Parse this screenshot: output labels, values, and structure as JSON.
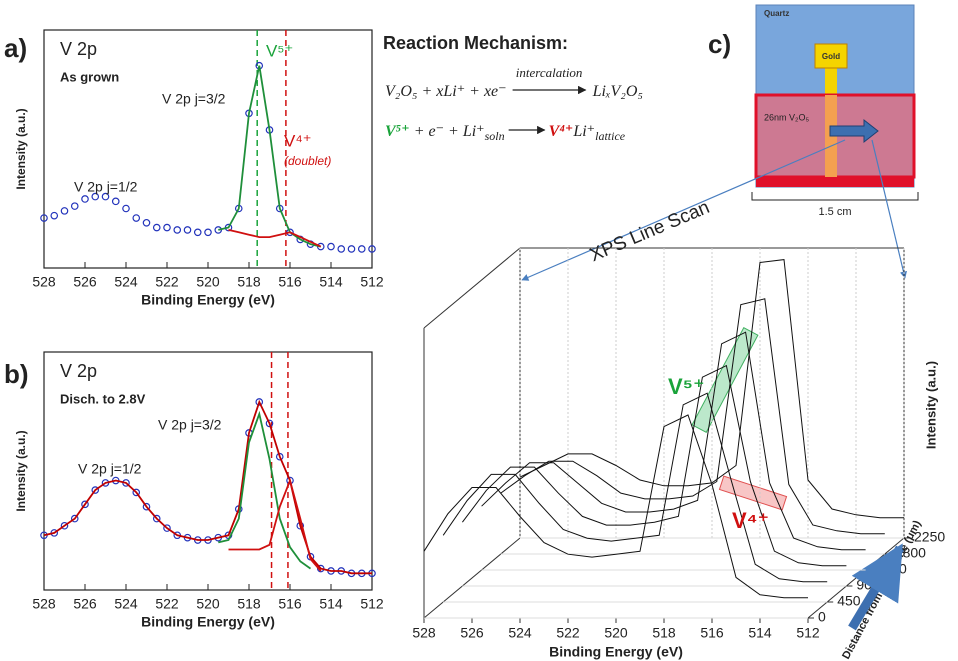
{
  "chart_data": [
    {
      "type": "line",
      "panel_label": "a)",
      "annotations": [
        {
          "text": "V 2p"
        },
        {
          "text": "As grown"
        },
        {
          "text": "V 2p j=3/2"
        },
        {
          "text": "V 2p j=1/2"
        },
        {
          "text": "V⁵⁺",
          "color": "#1aa33a"
        },
        {
          "text": "V⁴⁺",
          "color": "#d01010"
        },
        {
          "text": "(doublet)",
          "color": "#d01010"
        }
      ],
      "xlabel": "Binding Energy (eV)",
      "ylabel": "Intensity (a.u.)",
      "x": [
        528,
        527.5,
        527,
        526.5,
        526,
        525.5,
        525,
        524.5,
        524,
        523.5,
        523,
        522.5,
        522,
        521.5,
        521,
        520.5,
        520,
        519.5,
        519,
        518.5,
        518,
        517.5,
        517,
        516.5,
        516,
        515.5,
        515,
        514.5,
        514,
        513.5,
        513,
        512.5,
        512
      ],
      "xlim": [
        528,
        512
      ],
      "xticks": [
        528,
        526,
        524,
        522,
        520,
        518,
        516,
        514,
        512
      ],
      "ylim": [
        0,
        100
      ],
      "vlines": [
        {
          "x": 517.6,
          "color": "#1aa33a"
        },
        {
          "x": 516.2,
          "color": "#d01010"
        }
      ],
      "series": [
        {
          "color": "#2233bb",
          "marker": "circle",
          "values": [
            21,
            22,
            24,
            26,
            29,
            30,
            30,
            28,
            25,
            21,
            19,
            17,
            17,
            16,
            16,
            15,
            15,
            16,
            17,
            25,
            65,
            85,
            58,
            25,
            15,
            12,
            10,
            9,
            9,
            8,
            8,
            8,
            8
          ]
        },
        {
          "color": "#1f8f3a",
          "values": [
            null,
            null,
            null,
            null,
            null,
            null,
            null,
            null,
            null,
            null,
            null,
            null,
            null,
            null,
            null,
            null,
            null,
            16,
            17,
            25,
            65,
            85,
            58,
            25,
            15,
            12,
            10,
            9,
            null,
            null,
            null,
            null,
            null
          ]
        },
        {
          "color": "#d01010",
          "values": [
            null,
            null,
            null,
            null,
            null,
            null,
            null,
            null,
            null,
            null,
            null,
            null,
            null,
            null,
            null,
            null,
            null,
            null,
            16,
            15,
            14,
            13,
            13,
            14,
            15,
            13,
            11,
            9,
            null,
            null,
            null,
            null,
            null
          ]
        }
      ]
    },
    {
      "type": "line",
      "panel_label": "b)",
      "annotations": [
        {
          "text": "V 2p"
        },
        {
          "text": "Disch. to 2.8V"
        },
        {
          "text": "V 2p j=3/2"
        },
        {
          "text": "V 2p j=1/2"
        }
      ],
      "xlabel": "Binding Energy (eV)",
      "ylabel": "Intensity (a.u.)",
      "x": [
        528,
        527.5,
        527,
        526.5,
        526,
        525.5,
        525,
        524.5,
        524,
        523.5,
        523,
        522.5,
        522,
        521.5,
        521,
        520.5,
        520,
        519.5,
        519,
        518.5,
        518,
        517.5,
        517,
        516.5,
        516,
        515.5,
        515,
        514.5,
        514,
        513.5,
        513,
        512.5,
        512
      ],
      "xlim": [
        528,
        512
      ],
      "xticks": [
        528,
        526,
        524,
        522,
        520,
        518,
        516,
        514,
        512
      ],
      "ylim": [
        0,
        100
      ],
      "vlines": [
        {
          "x": 516.9,
          "color": "#d01010"
        },
        {
          "x": 516.1,
          "color": "#d01010"
        }
      ],
      "series": [
        {
          "color": "#2233bb",
          "marker": "circle",
          "values": [
            23,
            24,
            27,
            30,
            36,
            42,
            45,
            46,
            45,
            41,
            35,
            30,
            26,
            23,
            22,
            21,
            21,
            22,
            23,
            34,
            66,
            79,
            70,
            56,
            46,
            27,
            14,
            9,
            8,
            8,
            7,
            7,
            7
          ]
        },
        {
          "color": "#c00000",
          "values": [
            23,
            24,
            27,
            30,
            36,
            42,
            45,
            46,
            45,
            41,
            35,
            30,
            26,
            23,
            22,
            21,
            21,
            22,
            23,
            34,
            66,
            79,
            70,
            56,
            46,
            27,
            14,
            9,
            8,
            8,
            7,
            7,
            7
          ]
        },
        {
          "color": "#1f8f3a",
          "values": [
            null,
            null,
            null,
            null,
            null,
            null,
            null,
            null,
            null,
            null,
            null,
            null,
            null,
            null,
            null,
            null,
            null,
            20,
            21,
            30,
            62,
            74,
            55,
            30,
            18,
            12,
            9,
            null,
            null,
            null,
            null,
            null,
            null
          ]
        },
        {
          "color": "#d01010",
          "values": [
            null,
            null,
            null,
            null,
            null,
            null,
            null,
            null,
            null,
            null,
            null,
            null,
            null,
            null,
            null,
            null,
            null,
            null,
            17,
            17,
            17,
            17,
            19,
            35,
            46,
            30,
            13,
            8,
            null,
            null,
            null,
            null,
            null
          ]
        }
      ]
    },
    {
      "type": "waterfall",
      "annotations": [
        {
          "text": "V⁵⁺",
          "color": "#1aa33a"
        },
        {
          "text": "V⁴⁺",
          "color": "#d01010"
        }
      ],
      "xlabel": "Binding Energy (eV)",
      "ylabel": "Intensity (a.u.)",
      "zlabel": "Distance from centerline (μm)",
      "x": [
        528,
        527,
        526,
        525,
        524,
        523,
        522,
        521,
        520,
        519,
        518,
        517,
        516,
        515,
        514,
        513,
        512
      ],
      "xlim": [
        528,
        512
      ],
      "xticks": [
        528,
        526,
        524,
        522,
        520,
        518,
        516,
        514,
        512
      ],
      "ylim": [
        0,
        100
      ],
      "zlim": [
        0,
        2250
      ],
      "zticks": [
        0,
        450,
        900,
        1350,
        1800,
        2250
      ],
      "series": [
        {
          "color": "#111111",
          "depth": 2250,
          "values": [
            21,
            25,
            29,
            29,
            25,
            20,
            18,
            18,
            19,
            25,
            95,
            96,
            20,
            10,
            8,
            7,
            7
          ]
        },
        {
          "color": "#111111",
          "depth": 1800,
          "values": [
            21,
            27,
            32,
            32,
            27,
            21,
            19,
            19,
            20,
            25,
            86,
            88,
            24,
            10,
            8,
            7,
            7
          ]
        },
        {
          "color": "#111111",
          "depth": 1350,
          "values": [
            22,
            30,
            37,
            37,
            30,
            23,
            20,
            20,
            21,
            24,
            78,
            82,
            30,
            11,
            8,
            7,
            7
          ]
        },
        {
          "color": "#111111",
          "depth": 900,
          "values": [
            22,
            33,
            41,
            41,
            32,
            24,
            21,
            21,
            22,
            24,
            72,
            76,
            36,
            12,
            8,
            7,
            7
          ]
        },
        {
          "color": "#111111",
          "depth": 450,
          "values": [
            23,
            35,
            44,
            44,
            34,
            25,
            22,
            21,
            22,
            23,
            68,
            72,
            42,
            13,
            8,
            7,
            7
          ]
        },
        {
          "color": "#111111",
          "depth": 0,
          "values": [
            23,
            36,
            45,
            45,
            35,
            26,
            22,
            21,
            22,
            23,
            66,
            70,
            46,
            14,
            8,
            7,
            7
          ]
        }
      ]
    }
  ],
  "reaction": {
    "title": "Reaction Mechanism:",
    "eq1": {
      "lhs": "V₂O₅ + xLi⁺ + xe⁻",
      "arrow_label": "intercalation",
      "rhs": "LiₓV₂O₅"
    },
    "eq2": {
      "v5": "V⁵⁺",
      "mid": " + e⁻ + Li⁺",
      "soln": "soln",
      "v4": "V⁴⁺",
      "li": "Li⁺",
      "lattice": "lattice"
    }
  },
  "diagram": {
    "label": "c)",
    "substrate": "Quartz",
    "electrode": "Gold",
    "film": "26nm V₂O₅",
    "scale": "1.5 cm"
  },
  "line_scan_label": "XPS Line Scan"
}
